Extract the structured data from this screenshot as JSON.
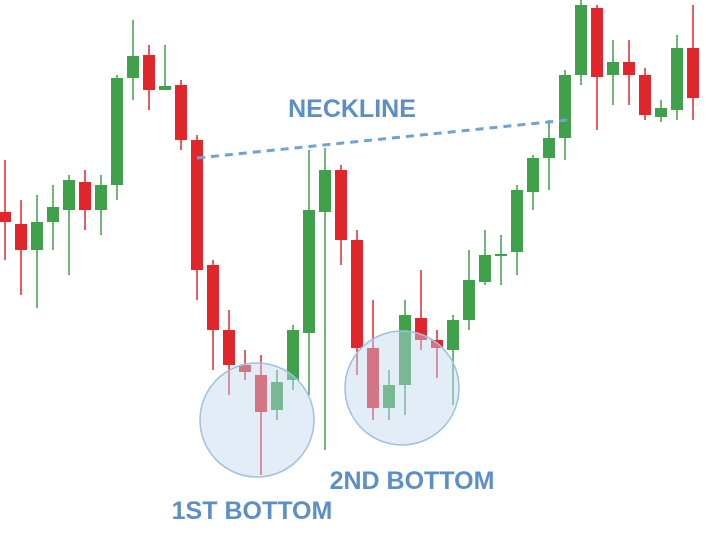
{
  "chart_data": {
    "type": "candlestick",
    "annotations": [
      "NECKLINE",
      "1ST BOTTOM",
      "2ND BOTTOM"
    ],
    "up_color": "#3fa14a",
    "down_color": "#e3262b",
    "ylim": [
      0,
      110
    ],
    "open": [
      67.6,
      65.2,
      60,
      65.6,
      68,
      73.6,
      68,
      73,
      94.4,
      99,
      92,
      93,
      82,
      57,
      44,
      37,
      35,
      28,
      34,
      43.4,
      67.6,
      76,
      62,
      40.4,
      28.4,
      33,
      46.4,
      42,
      40,
      46,
      53.6,
      58.8,
      59.6,
      71.6,
      78.4,
      82.4,
      95,
      108.4,
      95,
      97.6,
      95,
      86.6,
      88,
      100.4
    ],
    "high": [
      78,
      70,
      71,
      73,
      75,
      76,
      75,
      95,
      106,
      101,
      101,
      94,
      83,
      58,
      48,
      40,
      39,
      36,
      45,
      80,
      80.4,
      77,
      64,
      50,
      36,
      50,
      56,
      44,
      47,
      60,
      64,
      63,
      73,
      79,
      86,
      96,
      110,
      109,
      102,
      102,
      96.4,
      90,
      103,
      109
    ],
    "low": [
      58,
      51,
      48.4,
      60,
      55,
      64,
      63,
      70,
      90,
      88,
      92,
      80,
      50,
      36,
      31,
      34,
      15,
      26,
      32,
      31,
      20,
      57,
      35,
      26,
      26,
      27,
      40,
      34.4,
      29,
      44,
      53,
      53,
      55,
      68,
      72,
      78,
      93,
      84,
      89,
      89,
      86,
      85.6,
      86,
      86
    ],
    "close": [
      65.6,
      60,
      65.6,
      68.6,
      74,
      68,
      73,
      94.4,
      98.8,
      92,
      92.8,
      82,
      56,
      44,
      37,
      35.6,
      27.6,
      33.6,
      44,
      68,
      76,
      62,
      40.4,
      28.4,
      33,
      47,
      42,
      40.4,
      46,
      54,
      59,
      59.2,
      72,
      78.4,
      82.4,
      95,
      109,
      94.6,
      97.6,
      95,
      87,
      88.4,
      100.4,
      90.4
    ]
  }
}
